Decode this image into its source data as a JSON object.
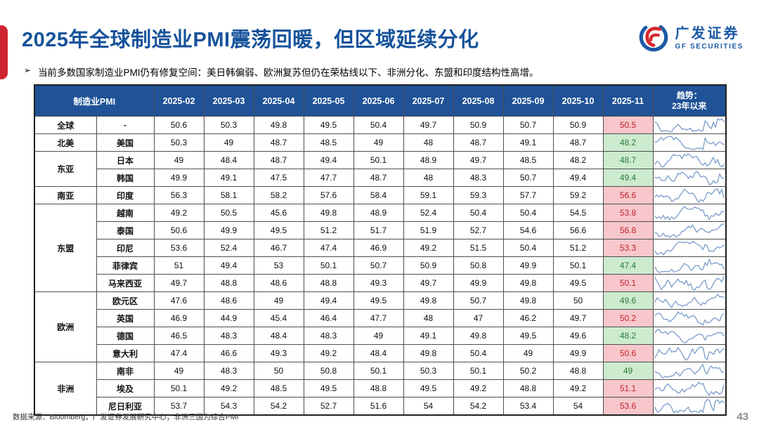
{
  "slide": {
    "title": "2025年全球制造业PMI震荡回暖，但区域延续分化",
    "bullet_marker": "➢",
    "bullet": "当前多数国家制造业PMI仍有修复空间：美日韩偏弱、欧洲复苏但仍在荣枯线以下、非洲分化、东盟和印度结构性高增。",
    "footer": "数据来源：Bloomberg，广发证券发展研究中心；非洲三国为综合PMI",
    "page_number": "43"
  },
  "logo": {
    "name_cn": "广发证券",
    "name_en": "GF SECURITIES"
  },
  "colors": {
    "title_blue": "#17539B",
    "accent_red": "#CE2432",
    "header_bg": "#1F5296",
    "above_50_bg": "#F7C7CB",
    "above_50_text": "#C0222C",
    "below_50_bg": "#CDEBCF",
    "below_50_text": "#2C7A36",
    "sparkline": "#7B9CC9"
  },
  "table": {
    "corner_header": "制造业PMI",
    "month_columns": [
      "2025-02",
      "2025-03",
      "2025-04",
      "2025-05",
      "2025-06",
      "2025-07",
      "2025-08",
      "2025-09",
      "2025-10",
      "2025-11"
    ],
    "trend_header_line1": "趋势：",
    "trend_header_line2": "23年以来",
    "groups": [
      {
        "region": "全球",
        "rows": [
          {
            "country": "-",
            "values": [
              "50.6",
              "50.3",
              "49.8",
              "49.5",
              "50.4",
              "49.7",
              "50.9",
              "50.7",
              "50.9",
              "50.5"
            ]
          }
        ]
      },
      {
        "region": "北美",
        "rows": [
          {
            "country": "美国",
            "values": [
              "50.3",
              "49",
              "48.7",
              "48.5",
              "49",
              "48",
              "48.7",
              "49.1",
              "48.7",
              "48.2"
            ]
          }
        ]
      },
      {
        "region": "东亚",
        "rows": [
          {
            "country": "日本",
            "values": [
              "49",
              "48.4",
              "48.7",
              "49.4",
              "50.1",
              "48.9",
              "49.7",
              "48.5",
              "48.2",
              "48.7"
            ]
          },
          {
            "country": "韩国",
            "values": [
              "49.9",
              "49.1",
              "47.5",
              "47.7",
              "48.7",
              "48",
              "48.3",
              "50.7",
              "49.4",
              "49.4"
            ]
          }
        ]
      },
      {
        "region": "南亚",
        "rows": [
          {
            "country": "印度",
            "values": [
              "56.3",
              "58.1",
              "58.2",
              "57.6",
              "58.4",
              "59.1",
              "59.3",
              "57.7",
              "59.2",
              "56.6"
            ]
          }
        ]
      },
      {
        "region": "东盟",
        "rows": [
          {
            "country": "越南",
            "values": [
              "49.2",
              "50.5",
              "45.6",
              "49.8",
              "48.9",
              "52.4",
              "50.4",
              "50.4",
              "54.5",
              "53.8"
            ]
          },
          {
            "country": "泰国",
            "values": [
              "50.6",
              "49.9",
              "49.5",
              "51.2",
              "51.7",
              "51.9",
              "52.7",
              "54.6",
              "56.6",
              "56.8"
            ]
          },
          {
            "country": "印尼",
            "values": [
              "53.6",
              "52.4",
              "46.7",
              "47.4",
              "46.9",
              "49.2",
              "51.5",
              "50.4",
              "51.2",
              "53.3"
            ]
          },
          {
            "country": "菲律宾",
            "values": [
              "51",
              "49.4",
              "53",
              "50.1",
              "50.7",
              "50.9",
              "50.8",
              "49.9",
              "50.1",
              "47.4"
            ]
          },
          {
            "country": "马来西亚",
            "values": [
              "49.7",
              "48.8",
              "48.6",
              "48.8",
              "49.3",
              "49.7",
              "49.9",
              "49.8",
              "49.5",
              "50.1"
            ]
          }
        ]
      },
      {
        "region": "欧洲",
        "rows": [
          {
            "country": "欧元区",
            "values": [
              "47.6",
              "48.6",
              "49",
              "49.4",
              "49.5",
              "49.8",
              "50.7",
              "49.8",
              "50",
              "49.6"
            ]
          },
          {
            "country": "英国",
            "values": [
              "46.9",
              "44.9",
              "45.4",
              "46.4",
              "47.7",
              "48",
              "47",
              "46.2",
              "49.7",
              "50.2"
            ]
          },
          {
            "country": "德国",
            "values": [
              "46.5",
              "48.3",
              "48.4",
              "48.3",
              "49",
              "49.1",
              "49.8",
              "49.5",
              "49.6",
              "48.2"
            ]
          },
          {
            "country": "意大利",
            "values": [
              "47.4",
              "46.6",
              "49.3",
              "49.2",
              "48.4",
              "49.8",
              "50.4",
              "49",
              "49.9",
              "50.6"
            ]
          }
        ]
      },
      {
        "region": "非洲",
        "rows": [
          {
            "country": "南非",
            "values": [
              "49",
              "48.3",
              "50",
              "50.8",
              "50.1",
              "50.3",
              "50.1",
              "50.2",
              "48.8",
              "49"
            ]
          },
          {
            "country": "埃及",
            "values": [
              "50.1",
              "49.2",
              "48.5",
              "49.5",
              "48.8",
              "49.5",
              "49.2",
              "48.8",
              "49.2",
              "51.1"
            ]
          },
          {
            "country": "尼日利亚",
            "values": [
              "53.7",
              "54.3",
              "54.2",
              "52.7",
              "51.6",
              "54",
              "54.2",
              "53.4",
              "54",
              "53.6"
            ]
          }
        ]
      }
    ]
  }
}
